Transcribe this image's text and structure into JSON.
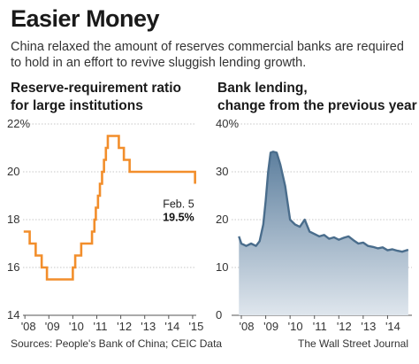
{
  "header": {
    "title": "Easier Money",
    "subtitle_line1": "China relaxed the amount of reserves commercial banks are required",
    "subtitle_line2": "to hold in an effort to revive sluggish lending growth."
  },
  "footer": {
    "sources": "Sources: People's Bank of China; CEIC Data",
    "credit": "The Wall Street Journal"
  },
  "colors": {
    "rrr_line": "#f28e2b",
    "lending_line": "#4a6d8c",
    "lending_fill_top": "#5d7f9e",
    "lending_fill_bottom": "#dfe6ed",
    "grid": "#c7c7c7",
    "axis": "#555555"
  },
  "chart_data": [
    {
      "type": "line",
      "title_line1": "Reserve-requirement ratio",
      "title_line2": "for large institutions",
      "y_ticks": [
        "22%",
        "20",
        "18",
        "16",
        "14"
      ],
      "y_tick_values": [
        22,
        20,
        18,
        16,
        14
      ],
      "ylim": [
        14,
        22
      ],
      "x_ticks": [
        "'08",
        "'09",
        "'10",
        "'11",
        "'12",
        "'13",
        "'14",
        "'15"
      ],
      "x_tick_values": [
        2008,
        2009,
        2010,
        2011,
        2012,
        2013,
        2014,
        2015
      ],
      "xlim": [
        2007.92,
        2015.15
      ],
      "grid": "horizontal",
      "step": true,
      "series": [
        {
          "x": [
            2007.95,
            2008.2,
            2008.45,
            2008.7,
            2008.92,
            2009.5,
            2010.0,
            2010.1,
            2010.35,
            2010.8,
            2010.9,
            2010.96,
            2011.05,
            2011.13,
            2011.22,
            2011.3,
            2011.38,
            2011.46,
            2011.92,
            2012.13,
            2012.37,
            2015.1
          ],
          "y": [
            17.5,
            17.0,
            16.5,
            16.0,
            15.5,
            15.5,
            16.0,
            16.5,
            17.0,
            17.5,
            18.0,
            18.5,
            19.0,
            19.5,
            20.0,
            20.5,
            21.0,
            21.5,
            21.0,
            20.5,
            20.0,
            19.5
          ]
        }
      ],
      "annotation": {
        "label": "Feb. 5",
        "value": "19.5%"
      }
    },
    {
      "type": "area",
      "title_line1": "Bank lending,",
      "title_line2": "change from the previous year",
      "y_ticks": [
        "40%",
        "30",
        "20",
        "10",
        "0"
      ],
      "y_tick_values": [
        40,
        30,
        20,
        10,
        0
      ],
      "ylim": [
        0,
        40
      ],
      "x_ticks": [
        "'08",
        "'09",
        "'10",
        "'11",
        "'12",
        "'13",
        "'14"
      ],
      "x_tick_values": [
        2008,
        2009,
        2010,
        2011,
        2012,
        2013,
        2014
      ],
      "xlim": [
        2007.6,
        2015.0
      ],
      "grid": "horizontal",
      "series": [
        {
          "x": [
            2007.9,
            2008.0,
            2008.2,
            2008.4,
            2008.6,
            2008.75,
            2008.9,
            2009.0,
            2009.1,
            2009.2,
            2009.3,
            2009.45,
            2009.6,
            2009.8,
            2010.0,
            2010.2,
            2010.4,
            2010.6,
            2010.8,
            2011.0,
            2011.2,
            2011.4,
            2011.6,
            2011.8,
            2012.0,
            2012.2,
            2012.4,
            2012.6,
            2012.8,
            2013.0,
            2013.2,
            2013.4,
            2013.6,
            2013.8,
            2014.0,
            2014.2,
            2014.4,
            2014.6,
            2014.85
          ],
          "y": [
            16.5,
            15.0,
            14.5,
            15.0,
            14.5,
            15.5,
            19.0,
            24.0,
            30.0,
            34.0,
            34.2,
            34.0,
            31.5,
            27.0,
            20.0,
            19.0,
            18.5,
            20.0,
            17.5,
            17.0,
            16.5,
            16.8,
            16.0,
            16.3,
            15.8,
            16.2,
            16.5,
            15.7,
            15.0,
            15.2,
            14.5,
            14.3,
            14.0,
            14.2,
            13.6,
            13.8,
            13.5,
            13.3,
            13.7
          ]
        }
      ]
    }
  ]
}
